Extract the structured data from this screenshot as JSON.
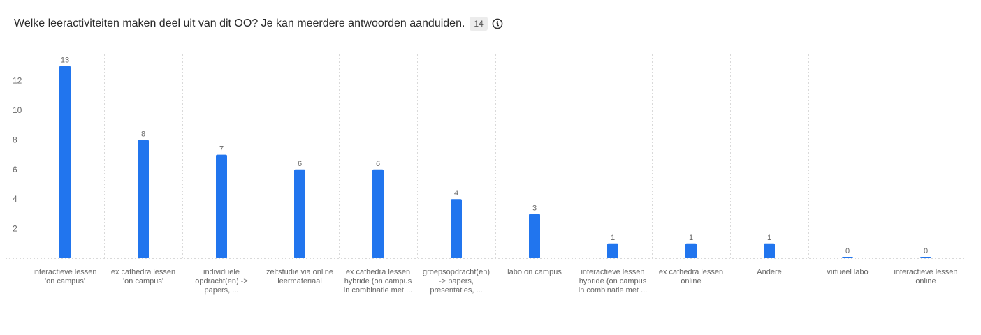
{
  "header": {
    "question": "Welke leeractiviteiten maken deel uit van dit OO? Je kan meerdere antwoorden aanduiden.",
    "response_count": "14",
    "info_icon": "info-icon"
  },
  "colors": {
    "bar": "#2175ee",
    "axis_text": "#666666",
    "grid": "#d9d9d9"
  },
  "chart_data": {
    "type": "bar",
    "title": "",
    "xlabel": "",
    "ylabel": "",
    "ylim": [
      0,
      14
    ],
    "yticks": [
      2,
      4,
      6,
      8,
      10,
      12
    ],
    "grid": "vertical dotted",
    "categories": [
      [
        "interactieve lessen",
        "'on campus'"
      ],
      [
        "ex cathedra lessen",
        "'on campus'"
      ],
      [
        "individuele",
        "opdracht(en) ->",
        "papers, ..."
      ],
      [
        "zelfstudie via online",
        "leermateriaal"
      ],
      [
        "ex cathedra lessen",
        "hybride (on campus",
        "in combinatie met ..."
      ],
      [
        "groepsopdracht(en)",
        "-> papers,",
        "presentaties, ..."
      ],
      [
        "labo on campus"
      ],
      [
        "interactieve lessen",
        "hybride (on campus",
        "in combinatie met ..."
      ],
      [
        "ex cathedra lessen",
        "online"
      ],
      [
        "Andere"
      ],
      [
        "virtueel labo"
      ],
      [
        "interactieve lessen",
        "online"
      ]
    ],
    "values": [
      13,
      8,
      7,
      6,
      6,
      4,
      3,
      1,
      1,
      1,
      0,
      0
    ]
  }
}
